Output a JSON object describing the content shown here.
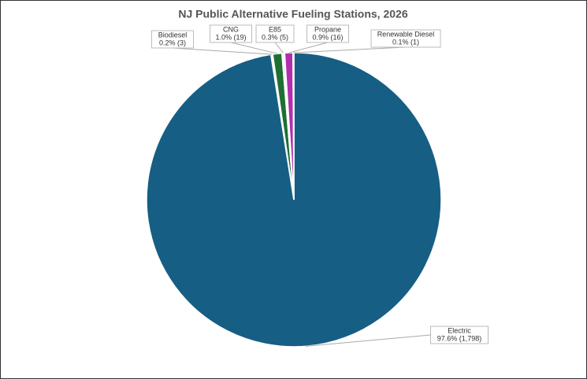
{
  "chart_data": {
    "type": "pie",
    "title": "NJ Public Alternative Fueling Stations, 2026",
    "categories": [
      "Electric",
      "Biodiesel",
      "CNG",
      "E85",
      "Propane",
      "Renewable Diesel"
    ],
    "values": [
      97.6,
      0.2,
      1.0,
      0.3,
      0.9,
      0.1
    ],
    "value_labels": [
      "97.6% (1,798)",
      "0.2% (3)",
      "1.0% (19)",
      "0.3% (5)",
      "0.9% (16)",
      "0.1% (1)"
    ],
    "colors": [
      "#165e83",
      "#f4f4f4",
      "#1f6f33",
      "#f4f4f4",
      "#b12fae",
      "#f4f4f4"
    ]
  }
}
